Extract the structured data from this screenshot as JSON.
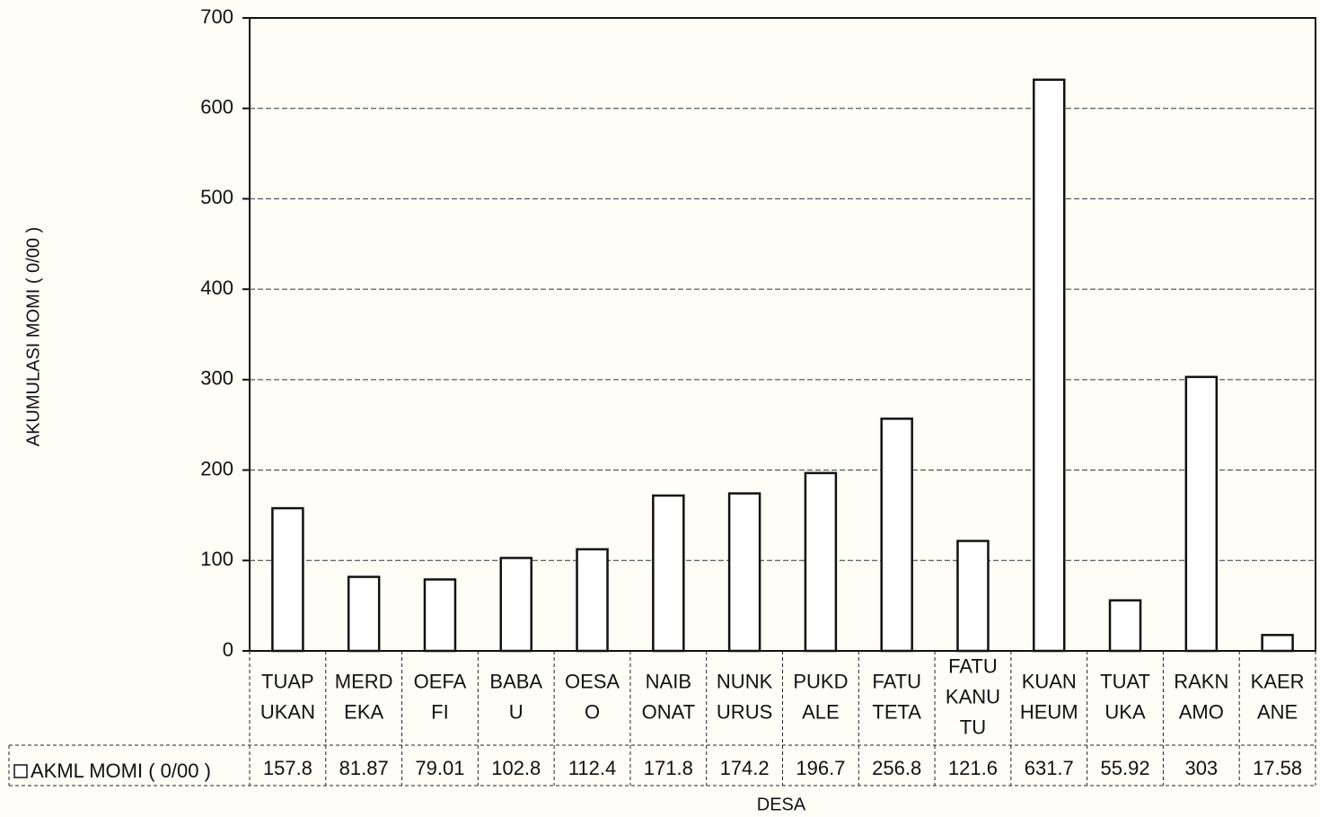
{
  "chart_data": {
    "type": "bar",
    "y_label": "AKUMULASI MOMI ( 0/00 )",
    "x_label": "DESA",
    "categories": [
      [
        "TUAP",
        "UKAN"
      ],
      [
        "MERD",
        "EKA"
      ],
      [
        "OEFA",
        "FI"
      ],
      [
        "BABA",
        "U"
      ],
      [
        "OESA",
        "O"
      ],
      [
        "NAIB",
        "ONAT"
      ],
      [
        "NUNK",
        "URUS"
      ],
      [
        "PUKD",
        "ALE"
      ],
      [
        "FATU",
        "TETA"
      ],
      [
        "FATU",
        "KANU",
        "TU"
      ],
      [
        "KUAN",
        "HEUM"
      ],
      [
        "TUAT",
        "UKA"
      ],
      [
        "RAKN",
        "AMO"
      ],
      [
        "KAER",
        "ANE"
      ]
    ],
    "series": [
      {
        "name": "AKML MOMI ( 0/00 )",
        "color": "#ffffff",
        "values": [
          157.8,
          81.87,
          79.01,
          102.8,
          112.4,
          171.8,
          174.2,
          196.7,
          256.8,
          121.6,
          631.7,
          55.92,
          303,
          17.58
        ]
      }
    ],
    "ylim": [
      0,
      700
    ],
    "yticks": [
      0,
      100,
      200,
      300,
      400,
      500,
      600,
      700
    ],
    "grid": true
  }
}
